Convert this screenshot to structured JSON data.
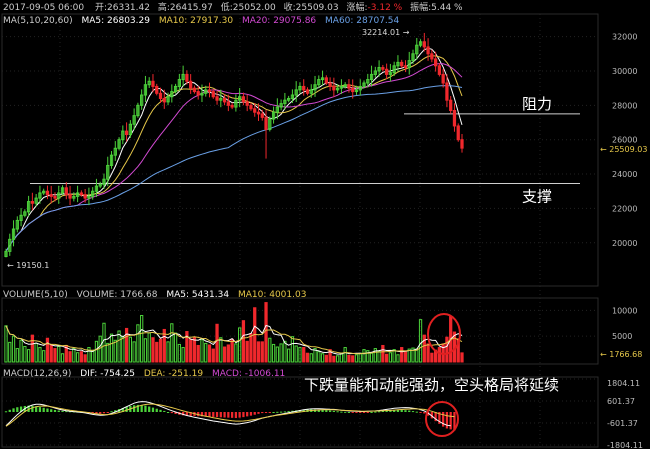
{
  "header": {
    "date": "2017-09-05 06:00",
    "open_label": "开:",
    "open": "26331.42",
    "high_label": "高:",
    "high": "26415.97",
    "low_label": "低:",
    "low": "25052.00",
    "close_label": "收:",
    "close": "25509.03",
    "chg_label": "涨幅:",
    "chg": "-3.12 %",
    "amp_label": "振幅:",
    "amp": "5.44 %"
  },
  "ma_legend": {
    "label": "MA(5,10,20,60)",
    "ma5": "MA5: 26803.29",
    "ma10": "MA10: 27917.30",
    "ma20": "MA20: 29075.86",
    "ma60": "MA60: 28707.54"
  },
  "vol_legend": {
    "label": "VOLUME(5,10)",
    "volume": "VOLUME: 1766.68",
    "ma5": "MA5: 5431.34",
    "ma10": "MA10: 4001.03"
  },
  "macd_legend": {
    "label": "MACD(12,26,9)",
    "dif": "DIF: -754.25",
    "dea": "DEA: -251.19",
    "macd": "MACD: -1006.11"
  },
  "annotations": {
    "resistance": "阻力",
    "support": "支撑",
    "macd_note": "下跌量能和动能强劲，空头格局将延续",
    "high_mark": "32214.01",
    "low_mark": "19150.1",
    "last_price": "25509.03",
    "last_volume": "1766.68"
  },
  "colors": {
    "up": "#4cd23a",
    "down": "#f0282d",
    "ma5": "#ffffff",
    "ma10": "#e6c84a",
    "ma20": "#d24ad2",
    "ma60": "#6aa0e6",
    "grid": "#222222",
    "circle": "#e02020"
  },
  "chart_data": [
    {
      "type": "candlestick",
      "panel": "price",
      "ylim": [
        17600,
        33200
      ],
      "yticks": [
        20000,
        22000,
        24000,
        26000,
        28000,
        30000,
        32000
      ],
      "grid": true,
      "levels": [
        {
          "name": "阻力",
          "value": 27500
        },
        {
          "name": "支撑",
          "value": 23450
        }
      ],
      "closes": [
        19500,
        20200,
        20800,
        21300,
        21600,
        21800,
        22400,
        22300,
        22600,
        22900,
        23000,
        22800,
        22700,
        22600,
        22900,
        23200,
        22800,
        22600,
        22700,
        22900,
        22800,
        22600,
        22700,
        23000,
        23300,
        23400,
        23700,
        24500,
        25100,
        25500,
        26000,
        26500,
        26300,
        26900,
        27400,
        28000,
        28600,
        29200,
        29400,
        29100,
        28700,
        28400,
        28200,
        28500,
        28800,
        29100,
        29500,
        29800,
        29400,
        29000,
        28800,
        28600,
        28700,
        28900,
        28800,
        28500,
        28300,
        28400,
        28200,
        28000,
        27900,
        28300,
        28500,
        28200,
        28000,
        27800,
        27600,
        27500,
        27300,
        26600,
        27200,
        27600,
        27900,
        28100,
        28300,
        28400,
        28600,
        28900,
        29100,
        28900,
        28700,
        28900,
        29200,
        29500,
        29600,
        29300,
        29100,
        28900,
        29000,
        29100,
        29200,
        29000,
        28800,
        28900,
        29100,
        29300,
        29500,
        29800,
        30000,
        30200,
        30100,
        29800,
        29900,
        30300,
        30500,
        30300,
        30200,
        30600,
        31000,
        31500,
        31700,
        31400,
        31000,
        30700,
        30300,
        29800,
        29300,
        28300,
        27700,
        26800,
        26000,
        25509.03
      ],
      "high": 32214.01,
      "low": 19150.1,
      "last": 25509.03
    },
    {
      "type": "bar",
      "panel": "volume",
      "ylim": [
        0,
        12000
      ],
      "yticks": [
        5000,
        10000
      ],
      "last": 1766.68,
      "values": [
        7000,
        3800,
        5000,
        2600,
        4200,
        3000,
        2400,
        5200,
        3600,
        2800,
        2200,
        4600,
        3400,
        2600,
        3000,
        1600,
        3200,
        2000,
        2600,
        1800,
        2000,
        1400,
        2800,
        2200,
        4000,
        5000,
        7500,
        3600,
        5400,
        4200,
        6000,
        5000,
        6500,
        4800,
        3900,
        7200,
        9000,
        4500,
        5600,
        4700,
        3800,
        4400,
        6300,
        3900,
        7400,
        5600,
        3400,
        2800,
        5900,
        4400,
        4800,
        3200,
        4300,
        3600,
        3300,
        2500,
        7300,
        4700,
        2900,
        3300,
        4400,
        3500,
        6600,
        8000,
        4000,
        5500,
        10500,
        3900,
        3900,
        11500,
        4600,
        3400,
        2900,
        3500,
        4000,
        2500,
        4900,
        3100,
        2800,
        2800,
        1700,
        1600,
        2600,
        2000,
        1600,
        1300,
        2400,
        1100,
        1200,
        1700,
        2800,
        1300,
        1200,
        1400,
        1700,
        2400,
        2200,
        1700,
        2600,
        2100,
        3200,
        1500,
        1800,
        2400,
        1400,
        2800,
        2000,
        2500,
        2700,
        2500,
        8200,
        5200,
        3500,
        1700,
        2300,
        2800,
        3500,
        4800,
        8800,
        5800,
        4500,
        1766.68
      ]
    },
    {
      "type": "bar",
      "panel": "macd",
      "ylim": [
        -1804.11,
        1804.11
      ],
      "yticks": [
        1804.11,
        601.37,
        -601.37,
        -1804.11
      ],
      "values": [
        40,
        120,
        200,
        260,
        300,
        330,
        350,
        340,
        310,
        270,
        230,
        190,
        150,
        110,
        80,
        60,
        50,
        40,
        30,
        20,
        10,
        0,
        -30,
        -60,
        -80,
        -100,
        -70,
        -20,
        40,
        100,
        160,
        220,
        280,
        330,
        370,
        390,
        380,
        350,
        300,
        240,
        180,
        120,
        60,
        0,
        -60,
        -110,
        -150,
        -180,
        -200,
        -210,
        -220,
        -230,
        -240,
        -250,
        -260,
        -270,
        -280,
        -290,
        -300,
        -310,
        -320,
        -330,
        -310,
        -280,
        -240,
        -200,
        -150,
        -100,
        -60,
        -30,
        -10,
        0,
        10,
        20,
        30,
        50,
        70,
        90,
        110,
        130,
        140,
        150,
        140,
        130,
        120,
        100,
        80,
        60,
        40,
        20,
        10,
        0,
        -10,
        -20,
        -30,
        -20,
        -10,
        0,
        20,
        40,
        60,
        80,
        100,
        110,
        120,
        120,
        100,
        80,
        50,
        20,
        -20,
        -80,
        -200,
        -350,
        -500,
        -650,
        -800,
        -900,
        -950,
        -1006.11
      ],
      "dif": [
        -750,
        -550,
        -350,
        -150,
        30,
        180,
        300,
        380,
        420,
        420,
        390,
        340,
        280,
        220,
        160,
        110,
        70,
        40,
        20,
        0,
        -20,
        -50,
        -90,
        -130,
        -160,
        -180,
        -170,
        -140,
        -80,
        0,
        90,
        190,
        290,
        390,
        480,
        540,
        570,
        560,
        520,
        460,
        390,
        310,
        230,
        150,
        70,
        0,
        -70,
        -130,
        -190,
        -240,
        -290,
        -330,
        -370,
        -410,
        -450,
        -490,
        -520,
        -550,
        -580,
        -610,
        -640,
        -660,
        -650,
        -620,
        -580,
        -530,
        -470,
        -400,
        -340,
        -290,
        -240,
        -200,
        -160,
        -120,
        -80,
        -40,
        0,
        40,
        80,
        120,
        150,
        170,
        180,
        180,
        170,
        160,
        150,
        140,
        120,
        100,
        80,
        60,
        50,
        40,
        30,
        30,
        40,
        50,
        60,
        80,
        110,
        140,
        170,
        200,
        220,
        230,
        240,
        230,
        210,
        180,
        130,
        60,
        -60,
        -220,
        -380,
        -520,
        -640,
        -720,
        -754.25
      ],
      "dea": [
        -780,
        -640,
        -480,
        -300,
        -130,
        20,
        140,
        230,
        290,
        320,
        330,
        320,
        290,
        250,
        210,
        170,
        130,
        100,
        70,
        45,
        20,
        -5,
        -35,
        -70,
        -100,
        -125,
        -140,
        -140,
        -120,
        -80,
        -30,
        30,
        100,
        170,
        240,
        310,
        370,
        410,
        430,
        430,
        410,
        380,
        340,
        290,
        240,
        180,
        120,
        60,
        10,
        -40,
        -90,
        -140,
        -190,
        -230,
        -270,
        -310,
        -350,
        -390,
        -420,
        -450,
        -480,
        -500,
        -500,
        -490,
        -470,
        -440,
        -410,
        -370,
        -330,
        -290,
        -250,
        -210,
        -180,
        -150,
        -120,
        -90,
        -60,
        -30,
        0,
        30,
        60,
        80,
        100,
        110,
        120,
        120,
        120,
        120,
        110,
        100,
        90,
        80,
        70,
        60,
        50,
        45,
        45,
        50,
        55,
        60,
        70,
        80,
        90,
        105,
        120,
        135,
        150,
        160,
        170,
        170,
        160,
        140,
        100,
        40,
        -30,
        -100,
        -150,
        -200,
        -230,
        -251.19
      ]
    }
  ]
}
